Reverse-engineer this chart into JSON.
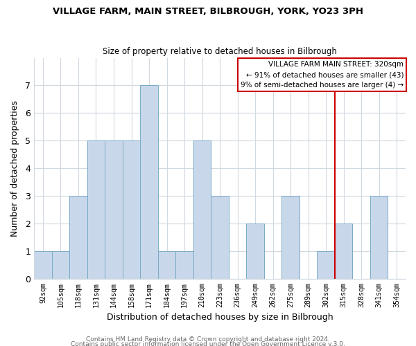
{
  "title1": "VILLAGE FARM, MAIN STREET, BILBROUGH, YORK, YO23 3PH",
  "title2": "Size of property relative to detached houses in Bilbrough",
  "xlabel": "Distribution of detached houses by size in Bilbrough",
  "ylabel": "Number of detached properties",
  "bins": [
    "92sqm",
    "105sqm",
    "118sqm",
    "131sqm",
    "144sqm",
    "158sqm",
    "171sqm",
    "184sqm",
    "197sqm",
    "210sqm",
    "223sqm",
    "236sqm",
    "249sqm",
    "262sqm",
    "275sqm",
    "289sqm",
    "302sqm",
    "315sqm",
    "328sqm",
    "341sqm",
    "354sqm"
  ],
  "counts": [
    1,
    1,
    3,
    5,
    5,
    5,
    7,
    1,
    1,
    5,
    3,
    0,
    2,
    0,
    3,
    0,
    1,
    2,
    0,
    3,
    0
  ],
  "bar_color": "#c8d8ea",
  "bar_edge_color": "#7aaac8",
  "marker_color": "#cc0000",
  "ylim": [
    0,
    8
  ],
  "yticks": [
    0,
    1,
    2,
    3,
    4,
    5,
    6,
    7
  ],
  "legend_title": "VILLAGE FARM MAIN STREET: 320sqm",
  "legend_line1": "← 91% of detached houses are smaller (43)",
  "legend_line2": "9% of semi-detached houses are larger (4) →",
  "legend_box_color": "#cc0000",
  "footer1": "Contains HM Land Registry data © Crown copyright and database right 2024.",
  "footer2": "Contains public sector information licensed under the Open Government Licence v.3.0."
}
